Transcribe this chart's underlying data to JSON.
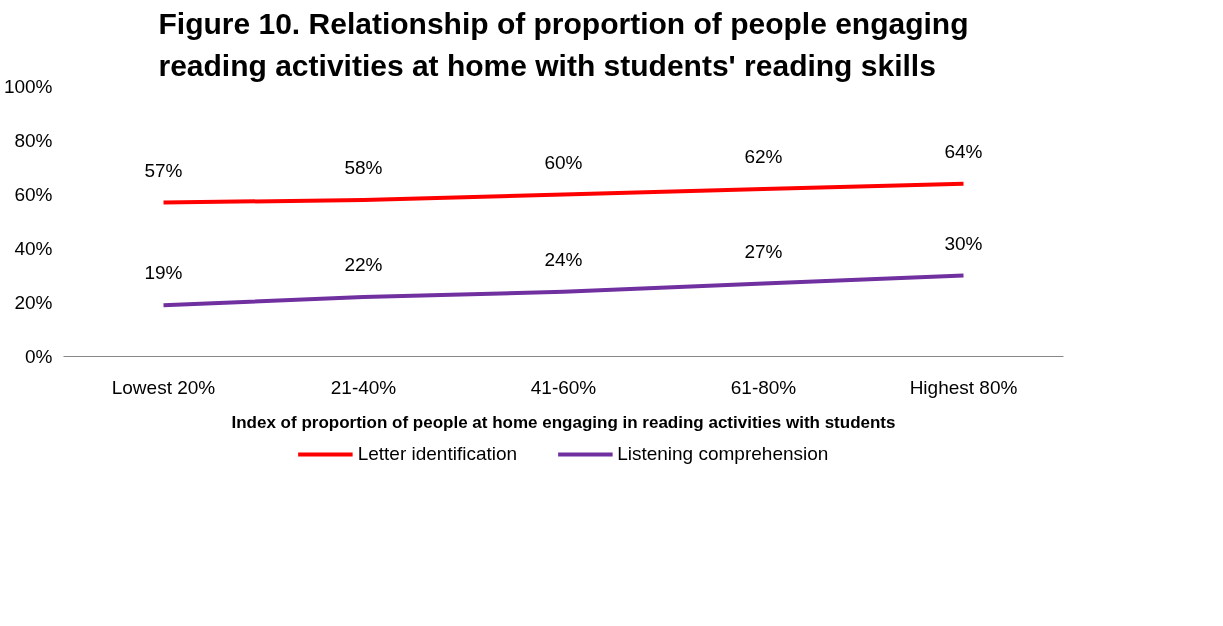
{
  "chart_data": {
    "type": "line",
    "title": "Figure 10. Relationship of proportion of people engaging reading activities at home with  students' reading skills",
    "xlabel": "Index of proportion of people at home engaging in reading activities with students",
    "categories": [
      "Lowest 20%",
      "21-40%",
      "41-60%",
      "61-80%",
      "Highest 80%"
    ],
    "series": [
      {
        "name": "Letter identification",
        "color": "#ff0000",
        "values": [
          57,
          58,
          60,
          62,
          64
        ],
        "value_labels": [
          "57%",
          "58%",
          "60%",
          "62%",
          "64%"
        ]
      },
      {
        "name": "Listening comprehension",
        "color": "#7030a0",
        "values": [
          19,
          22,
          24,
          27,
          30
        ],
        "value_labels": [
          "19%",
          "22%",
          "24%",
          "27%",
          "30%"
        ]
      }
    ],
    "ylim": [
      0,
      100
    ],
    "yticks": [
      {
        "value": 0,
        "label": "0%"
      },
      {
        "value": 20,
        "label": "20%"
      },
      {
        "value": 40,
        "label": "40%"
      },
      {
        "value": 60,
        "label": "60%"
      },
      {
        "value": 80,
        "label": "80%"
      },
      {
        "value": 100,
        "label": "100%"
      }
    ],
    "grid": false,
    "legend": "bottom",
    "marker": "none",
    "line_style": "solid"
  }
}
